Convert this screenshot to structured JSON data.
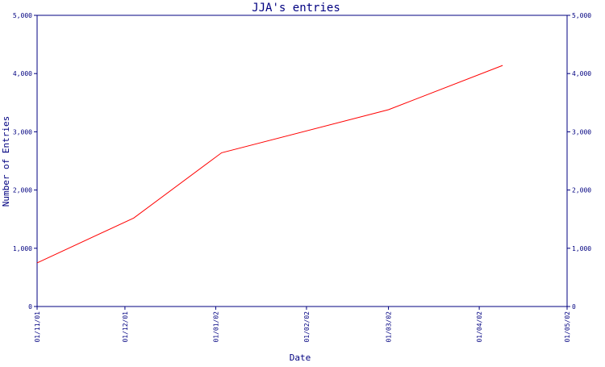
{
  "chart_data": {
    "type": "line",
    "title": "JJA's entries",
    "xlabel": "Date",
    "ylabel": "Number of Entries",
    "ylim": [
      0,
      5000
    ],
    "yticks": [
      0,
      1000,
      2000,
      3000,
      4000,
      5000
    ],
    "ytick_labels": [
      "0",
      "1,000",
      "2,000",
      "3,000",
      "4,000",
      "5,000"
    ],
    "xlim": [
      "2001-11-01",
      "2002-05-01"
    ],
    "xticks": [
      "2001-11-01",
      "2001-12-01",
      "2002-01-01",
      "2002-02-01",
      "2002-03-01",
      "2002-04-01",
      "2002-05-01"
    ],
    "xtick_labels": [
      "01/11/01",
      "01/12/01",
      "01/01/02",
      "01/02/02",
      "01/03/02",
      "01/04/02",
      "01/05/02"
    ],
    "secondary_y_axis": true,
    "grid": false,
    "colors": {
      "axis": "#000080",
      "series": "#ff0000",
      "background": "#ffffff"
    },
    "series": [
      {
        "x": [
          "2001-11-01",
          "2001-12-04",
          "2002-01-03",
          "2002-03-01",
          "2002-04-09"
        ],
        "y": [
          750,
          1520,
          2640,
          3380,
          4140
        ]
      }
    ]
  }
}
